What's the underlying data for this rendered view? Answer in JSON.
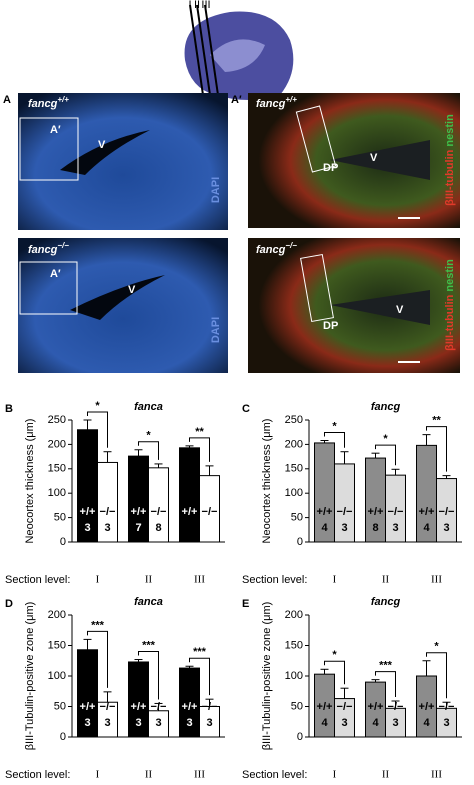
{
  "sketch": {
    "levels": [
      "I",
      "II",
      "III"
    ]
  },
  "micrographs": {
    "panel_a": "A",
    "panel_a_prime": "A′",
    "top": {
      "gene": "fancg",
      "genotype": "+/+"
    },
    "bottom": {
      "gene": "fancg",
      "genotype": "−/−"
    },
    "ventricle": "V",
    "dapi": "DAPI",
    "box_label": "A′",
    "dp": "DP",
    "stain1": "βIII-tubulin",
    "stain2": "nestin"
  },
  "chart_data": [
    {
      "type": "bar",
      "panel": "B",
      "title": "fanca",
      "y_label": "Neocortex thickness (μm)",
      "x_label": "Section level:",
      "categories": [
        "I",
        "II",
        "III"
      ],
      "ylim": [
        0,
        250
      ],
      "yticks": [
        0,
        50,
        100,
        150,
        200,
        250
      ],
      "series": [
        {
          "name": "+/+",
          "color": "#000000",
          "values": [
            230,
            176,
            193
          ],
          "errors": [
            20,
            13,
            4
          ],
          "n": [
            3,
            7,
            null
          ]
        },
        {
          "name": "−/−",
          "color": "#ffffff",
          "values": [
            163,
            152,
            136
          ],
          "errors": [
            22,
            8,
            20
          ],
          "n": [
            3,
            8,
            null
          ]
        }
      ],
      "significance": [
        "*",
        "*",
        "**"
      ]
    },
    {
      "type": "bar",
      "panel": "C",
      "title": "fancg",
      "y_label": "Neocortex thickness (μm)",
      "x_label": "Section level:",
      "categories": [
        "I",
        "II",
        "III"
      ],
      "ylim": [
        0,
        250
      ],
      "yticks": [
        0,
        50,
        100,
        150,
        200,
        250
      ],
      "series": [
        {
          "name": "+/+",
          "color": "#8c8c8c",
          "values": [
            203,
            172,
            198
          ],
          "errors": [
            5,
            10,
            22
          ],
          "n": [
            4,
            8,
            4
          ]
        },
        {
          "name": "−/−",
          "color": "#dcdcdc",
          "values": [
            160,
            137,
            130
          ],
          "errors": [
            25,
            12,
            6
          ],
          "n": [
            3,
            3,
            3
          ]
        }
      ],
      "significance": [
        "*",
        "*",
        "**"
      ]
    },
    {
      "type": "bar",
      "panel": "D",
      "title": "fanca",
      "y_label": "βIII-Tubulin-positive zone (μm)",
      "x_label": "Section level:",
      "categories": [
        "I",
        "II",
        "III"
      ],
      "ylim": [
        0,
        200
      ],
      "yticks": [
        0,
        50,
        100,
        150,
        200
      ],
      "series": [
        {
          "name": "+/+",
          "color": "#000000",
          "values": [
            143,
            123,
            113
          ],
          "errors": [
            17,
            4,
            3
          ],
          "n": [
            3,
            3,
            3
          ]
        },
        {
          "name": "−/−",
          "color": "#ffffff",
          "values": [
            57,
            43,
            50
          ],
          "errors": [
            17,
            12,
            12
          ],
          "n": [
            3,
            3,
            3
          ]
        }
      ],
      "significance": [
        "***",
        "***",
        "***"
      ]
    },
    {
      "type": "bar",
      "panel": "E",
      "title": "fancg",
      "y_label": "βIII-Tubulin-positive zone (μm)",
      "x_label": "Section level:",
      "categories": [
        "I",
        "II",
        "III"
      ],
      "ylim": [
        0,
        200
      ],
      "yticks": [
        0,
        50,
        100,
        150,
        200
      ],
      "series": [
        {
          "name": "+/+",
          "color": "#8c8c8c",
          "values": [
            103,
            90,
            100
          ],
          "errors": [
            8,
            4,
            25
          ],
          "n": [
            4,
            4,
            4
          ]
        },
        {
          "name": "−/−",
          "color": "#dcdcdc",
          "values": [
            63,
            47,
            47
          ],
          "errors": [
            17,
            12,
            10
          ],
          "n": [
            3,
            3,
            3
          ]
        }
      ],
      "significance": [
        "*",
        "***",
        "*"
      ]
    }
  ]
}
